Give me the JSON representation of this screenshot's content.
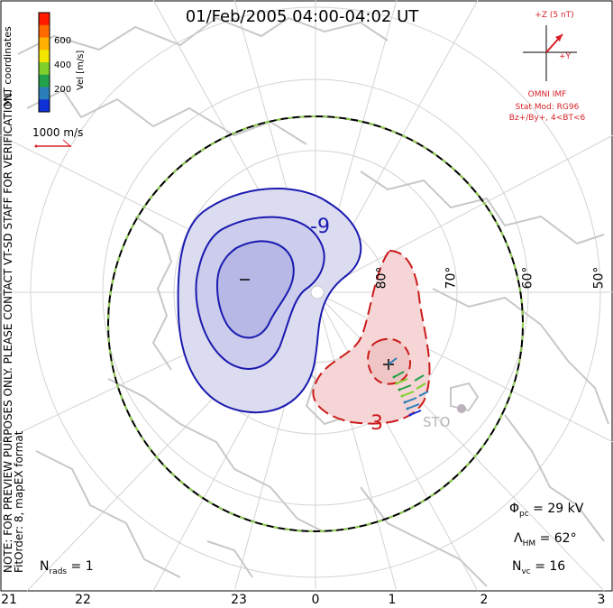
{
  "title": "01/Feb/2005 04:00-04:02 UT",
  "note_line1": "NOTE: FOR PREVIEW PURPOSES ONLY. PLEASE CONTACT VT-SD STAFF FOR VERIFICATION.",
  "note_line2": "FitOrder: 8, mapEX format",
  "coord_label": "MLT coordinates",
  "colorbar": {
    "label": "Vel [m/s]",
    "ticks": [
      "600",
      "400",
      "200"
    ],
    "colors": [
      "#ff1a00",
      "#ff6a00",
      "#ffb000",
      "#f2e600",
      "#7fd02a",
      "#22a24a",
      "#2a7fb8",
      "#1030d8"
    ]
  },
  "reference_vector": "1000 m/s",
  "imf": {
    "bz_label": "+Z (5 nT)",
    "by_label": "+Y",
    "source": "OMNI IMF",
    "model": "Stat Mod: RG96",
    "conditions": "Bz+/By+, 4<BT<6",
    "color": "#d81f26"
  },
  "potential_labels": {
    "negative": "-9",
    "positive": "3"
  },
  "latitude_labels": [
    "80°",
    "70°",
    "60°",
    "50°"
  ],
  "station": "STO",
  "stats": {
    "phi_symbol": "Φ",
    "phi_sub": "pc",
    "phi_value": " = 29 kV",
    "lambda_symbol": "Λ",
    "lambda_sub": "HM",
    "lambda_value": " = 62°",
    "nvc_symbol": "N",
    "nvc_sub": "vc",
    "nvc_value": " = 16",
    "nrads_symbol": "N",
    "nrads_sub": "rads",
    "nrads_value": " = 1"
  },
  "mlt_ticks": [
    "21",
    "22",
    "23",
    "0",
    "1",
    "2",
    "3"
  ],
  "colors": {
    "negative_fill": "#dcdcf0",
    "negative_line": "#1a1ab0",
    "positive_fill": "#f5d5d5",
    "positive_line": "#cc1a1a",
    "coastline": "#c8c8c8",
    "grid": "#d3d3d3"
  }
}
